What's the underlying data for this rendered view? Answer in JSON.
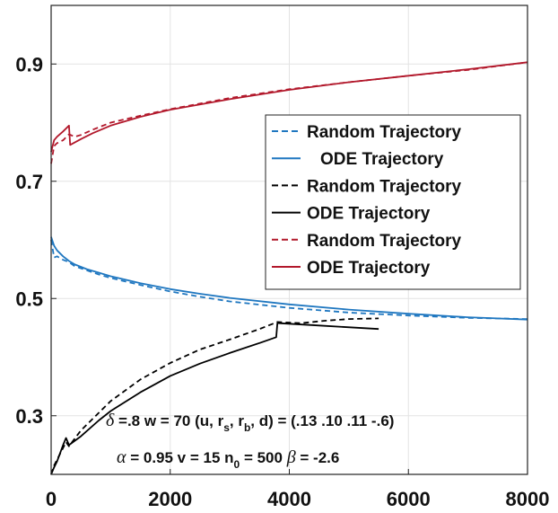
{
  "chart_data": {
    "type": "line",
    "title": "",
    "xlabel": "",
    "ylabel": "",
    "xlim": [
      0,
      8000
    ],
    "ylim": [
      0.2,
      1.0
    ],
    "xticks": [
      0,
      2000,
      4000,
      6000,
      8000
    ],
    "xtick_labels": [
      "0",
      "2000",
      "4000",
      "6000",
      "8000"
    ],
    "yticks": [
      0.3,
      0.5,
      0.7,
      0.9
    ],
    "ytick_labels": [
      "0.3",
      "0.5",
      "0.7",
      "0.9"
    ],
    "grid": true,
    "legend_position": "right",
    "colors": {
      "blue": "#1f77c0",
      "black": "#000000",
      "red": "#b2182b"
    },
    "series": [
      {
        "name": "Random Trajectory",
        "color": "#1f77c0",
        "dash": true,
        "x": [
          0,
          50,
          100,
          200,
          300,
          400,
          600,
          800,
          1000,
          1500,
          2000,
          2500,
          3000,
          4000,
          5000,
          6000,
          7000,
          8000
        ],
        "y": [
          0.6,
          0.57,
          0.572,
          0.566,
          0.562,
          0.555,
          0.548,
          0.541,
          0.535,
          0.523,
          0.512,
          0.503,
          0.495,
          0.484,
          0.476,
          0.471,
          0.467,
          0.465
        ]
      },
      {
        "name": "ODE Trajectory",
        "color": "#1f77c0",
        "dash": false,
        "x": [
          0,
          50,
          100,
          200,
          300,
          400,
          600,
          800,
          1000,
          1500,
          2000,
          2500,
          3000,
          4000,
          5000,
          6000,
          7000,
          8000
        ],
        "y": [
          0.605,
          0.59,
          0.582,
          0.572,
          0.564,
          0.558,
          0.55,
          0.544,
          0.538,
          0.526,
          0.516,
          0.508,
          0.501,
          0.49,
          0.481,
          0.474,
          0.468,
          0.464
        ]
      },
      {
        "name": "Random Trajectory",
        "color": "#000000",
        "dash": true,
        "x": [
          0,
          50,
          100,
          200,
          250,
          300,
          500,
          800,
          1000,
          1500,
          2000,
          2500,
          3000,
          3500,
          3800,
          4200,
          4600,
          5000,
          5500
        ],
        "y": [
          0.2,
          0.215,
          0.225,
          0.245,
          0.255,
          0.248,
          0.275,
          0.305,
          0.325,
          0.362,
          0.39,
          0.413,
          0.43,
          0.448,
          0.46,
          0.458,
          0.462,
          0.465,
          0.466
        ]
      },
      {
        "name": "ODE Trajectory",
        "color": "#000000",
        "dash": false,
        "x": [
          0,
          50,
          100,
          200,
          250,
          300,
          500,
          800,
          1000,
          1500,
          2000,
          2500,
          3000,
          3500,
          3780,
          3800,
          3820,
          4500,
          5500
        ],
        "y": [
          0.2,
          0.212,
          0.222,
          0.25,
          0.262,
          0.25,
          0.265,
          0.292,
          0.308,
          0.34,
          0.368,
          0.389,
          0.407,
          0.424,
          0.434,
          0.458,
          0.458,
          0.454,
          0.448
        ]
      },
      {
        "name": "Random Trajectory",
        "color": "#b2182b",
        "dash": true,
        "x": [
          0,
          50,
          100,
          200,
          300,
          400,
          500,
          700,
          1000,
          1500,
          2000,
          3000,
          4000,
          5000,
          6000,
          7000,
          8000
        ],
        "y": [
          0.73,
          0.76,
          0.765,
          0.77,
          0.78,
          0.776,
          0.779,
          0.788,
          0.8,
          0.812,
          0.823,
          0.842,
          0.857,
          0.869,
          0.88,
          0.89,
          0.903
        ]
      },
      {
        "name": "ODE Trajectory",
        "color": "#b2182b",
        "dash": false,
        "x": [
          0,
          50,
          100,
          200,
          300,
          320,
          500,
          700,
          1000,
          1500,
          2000,
          3000,
          4000,
          5000,
          6000,
          7000,
          8000
        ],
        "y": [
          0.75,
          0.77,
          0.776,
          0.785,
          0.795,
          0.762,
          0.772,
          0.782,
          0.795,
          0.81,
          0.822,
          0.84,
          0.856,
          0.869,
          0.88,
          0.891,
          0.903
        ]
      }
    ],
    "annotations": {
      "line1": {
        "greek": "δ",
        "text_a": " =.8 w = 70  (u, r",
        "sub1": "s",
        "text_b": ", r",
        "sub2": "b",
        "text_c": ", d) = (.13  .10 .11 -.6)"
      },
      "line2": {
        "greek1": "α",
        "text_a": " = 0.95  v = 15 n",
        "sub1": "0",
        "text_b": " = 500 ",
        "greek2": "β",
        "text_c": " = -2.6"
      }
    }
  }
}
